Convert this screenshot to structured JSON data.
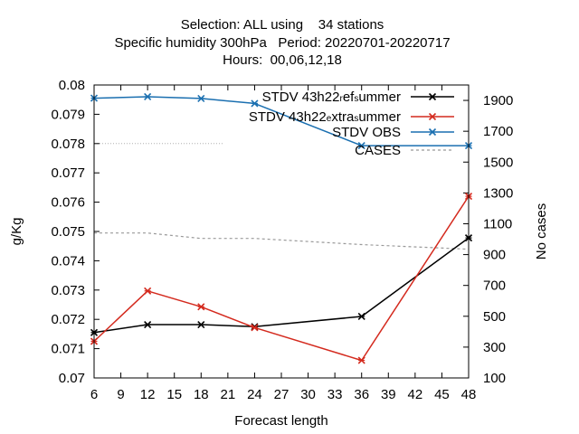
{
  "chart_data": {
    "type": "line",
    "title_lines": [
      "Selection: ALL using    34 stations",
      "Specific humidity 300hPa   Period: 20220701-20220717",
      "Hours:  00,06,12,18"
    ],
    "xlabel": "Forecast length",
    "ylabel": "g/Kg",
    "y2label": "No cases",
    "xlim": [
      6,
      48
    ],
    "ylim": [
      0.07,
      0.08
    ],
    "y2lim": [
      100,
      2000
    ],
    "x_ticks": [
      "6",
      "9",
      "12",
      "15",
      "18",
      "21",
      "24",
      "27",
      "30",
      "33",
      "36",
      "39",
      "42",
      "45",
      "48"
    ],
    "y_ticks": [
      "0.07",
      "0.071",
      "0.072",
      "0.073",
      "0.074",
      "0.075",
      "0.076",
      "0.077",
      "0.078",
      "0.079",
      "0.08"
    ],
    "y2_ticks": [
      "100",
      "300",
      "500",
      "700",
      "900",
      "1100",
      "1300",
      "1500",
      "1700",
      "1900"
    ],
    "legend_position": "top-right",
    "series": [
      {
        "name": "STDV 43h22_ref_summer",
        "legend_parts": [
          [
            "STDV 43h22",
            ""
          ],
          [
            "r",
            "sub"
          ],
          [
            "ef",
            ""
          ],
          [
            "s",
            "sub"
          ],
          [
            "ummer",
            ""
          ]
        ],
        "color": "#000000",
        "axis": "y1",
        "marker": "x",
        "x": [
          6,
          12,
          18,
          24,
          36,
          48
        ],
        "y": [
          0.07155,
          0.07182,
          0.07182,
          0.07175,
          0.0721,
          0.07478
        ]
      },
      {
        "name": "STDV 43h22_extra_summer",
        "legend_parts": [
          [
            "STDV 43h22",
            ""
          ],
          [
            "e",
            "sub"
          ],
          [
            "xtra",
            ""
          ],
          [
            "s",
            "sub"
          ],
          [
            "ummer",
            ""
          ]
        ],
        "color": "#d42a1e",
        "axis": "y1",
        "marker": "x",
        "x": [
          6,
          12,
          18,
          24,
          36,
          48
        ],
        "y": [
          0.07125,
          0.07297,
          0.07243,
          0.07172,
          0.0706,
          0.0762
        ]
      },
      {
        "name": "STDV OBS",
        "legend_parts": [
          [
            "STDV OBS",
            ""
          ]
        ],
        "color": "#1a6fb0",
        "axis": "y1",
        "marker": "x",
        "x": [
          6,
          12,
          18,
          24,
          36,
          48
        ],
        "y": [
          0.07955,
          0.0796,
          0.07954,
          0.07937,
          0.07793,
          0.07793
        ]
      },
      {
        "name": "CASES",
        "legend_parts": [
          [
            "CASES",
            ""
          ]
        ],
        "color": "#999999",
        "axis": "y2",
        "dashed": true,
        "x": [
          6,
          12,
          18,
          24,
          36,
          48
        ],
        "y": [
          1040,
          1040,
          1005,
          1005,
          965,
          935
        ]
      }
    ]
  }
}
